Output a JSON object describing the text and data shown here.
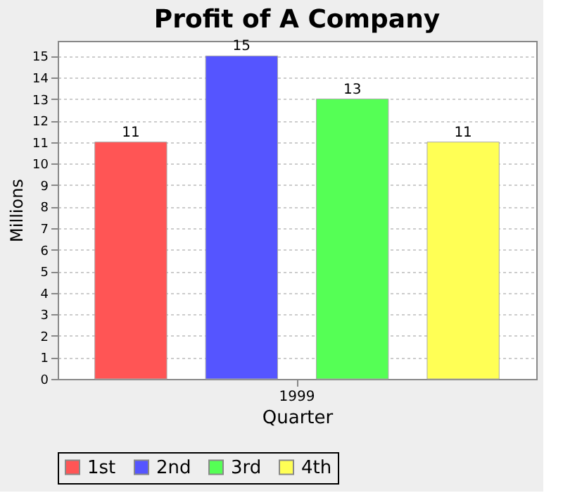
{
  "chart_data": {
    "type": "bar",
    "title": "Profit of A Company",
    "xlabel": "Quarter",
    "ylabel": "Millions",
    "categories": [
      "1999"
    ],
    "series": [
      {
        "name": "1st",
        "color": "#ff5555",
        "values": [
          11
        ]
      },
      {
        "name": "2nd",
        "color": "#5555ff",
        "values": [
          15
        ]
      },
      {
        "name": "3rd",
        "color": "#55ff55",
        "values": [
          13
        ]
      },
      {
        "name": "4th",
        "color": "#ffff55",
        "values": [
          11
        ]
      }
    ],
    "ylim": [
      0,
      15.7
    ],
    "yticks": [
      0,
      1,
      2,
      3,
      4,
      5,
      6,
      7,
      8,
      9,
      10,
      11,
      12,
      13,
      14,
      15
    ],
    "grid": "y",
    "legend": "bottom",
    "data_labels": true
  }
}
